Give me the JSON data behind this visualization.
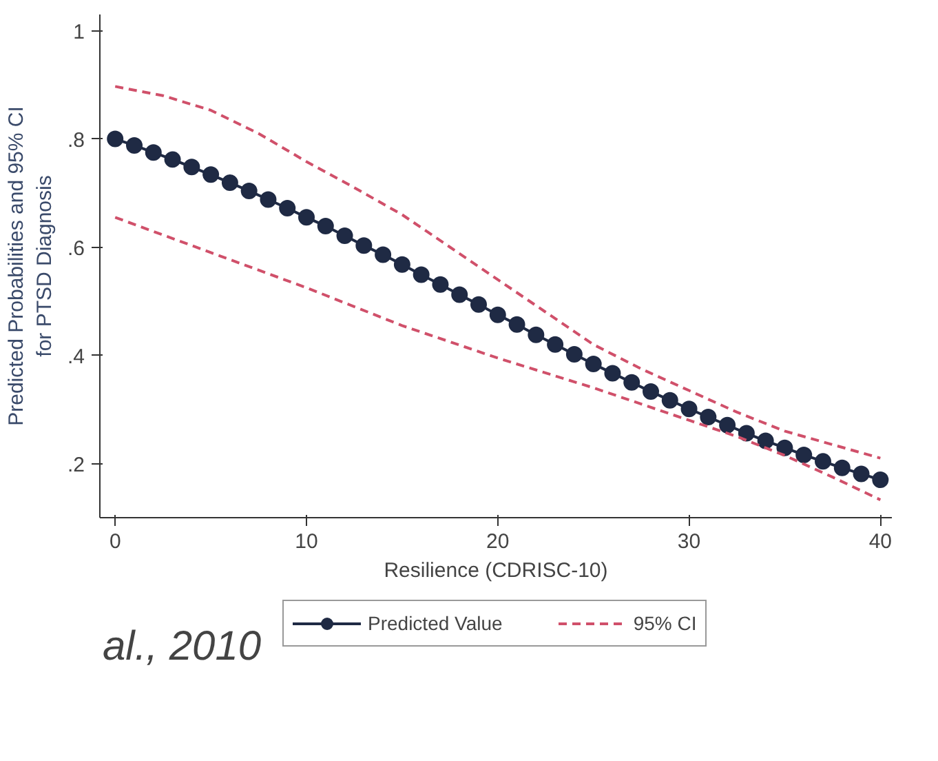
{
  "chart_data": {
    "type": "line",
    "xlabel": "Resilience (CDRISC-10)",
    "ylabel": "Predicted Probabilities and 95% CI\nfor PTSD Diagnosis",
    "xlim": [
      -0.8,
      40.6
    ],
    "ylim": [
      0.1,
      1.03
    ],
    "xticks": [
      0,
      10,
      20,
      30,
      40
    ],
    "yticks": [
      {
        "value": 0.2,
        "label": ".2"
      },
      {
        "value": 0.4,
        "label": ".4"
      },
      {
        "value": 0.6,
        "label": ".6"
      },
      {
        "value": 0.8,
        "label": ".8"
      },
      1
    ],
    "grid": false,
    "legend": "bottom",
    "annotations": [
      "al., 2010"
    ],
    "series": [
      {
        "name": "Predicted Value",
        "color": "#1f2a44",
        "marker": "circle",
        "line_style": "solid",
        "x": [
          0,
          1,
          2,
          3,
          4,
          5,
          6,
          7,
          8,
          9,
          10,
          11,
          12,
          13,
          14,
          15,
          16,
          17,
          18,
          19,
          20,
          21,
          22,
          23,
          24,
          25,
          26,
          27,
          28,
          29,
          30,
          31,
          32,
          33,
          34,
          35,
          36,
          37,
          38,
          39,
          40
        ],
        "values": [
          0.8,
          0.788,
          0.775,
          0.762,
          0.748,
          0.734,
          0.719,
          0.704,
          0.688,
          0.672,
          0.655,
          0.639,
          0.621,
          0.603,
          0.586,
          0.568,
          0.549,
          0.531,
          0.512,
          0.494,
          0.475,
          0.457,
          0.438,
          0.42,
          0.402,
          0.384,
          0.367,
          0.35,
          0.333,
          0.317,
          0.301,
          0.286,
          0.271,
          0.256,
          0.242,
          0.229,
          0.216,
          0.204,
          0.192,
          0.181,
          0.17
        ]
      },
      {
        "name": "95% CI",
        "color": "#d0506a",
        "marker": "none",
        "line_style": "dashed",
        "x": [
          0,
          2.5,
          5,
          7.5,
          10,
          12.5,
          15,
          17.5,
          20,
          22.5,
          25,
          27.5,
          30,
          32.5,
          35,
          37.5,
          40
        ],
        "values": [
          0.897,
          0.88,
          0.853,
          0.81,
          0.758,
          0.71,
          0.66,
          0.6,
          0.54,
          0.48,
          0.42,
          0.375,
          0.335,
          0.295,
          0.26,
          0.235,
          0.21
        ]
      },
      {
        "color": "#d0506a",
        "marker": "none",
        "line_style": "dashed",
        "x": [
          0,
          5,
          10,
          15,
          20,
          25,
          27.5,
          30,
          32.5,
          35,
          37.5,
          40
        ],
        "values": [
          0.655,
          0.59,
          0.525,
          0.455,
          0.395,
          0.34,
          0.31,
          0.28,
          0.25,
          0.215,
          0.175,
          0.133
        ]
      }
    ]
  }
}
